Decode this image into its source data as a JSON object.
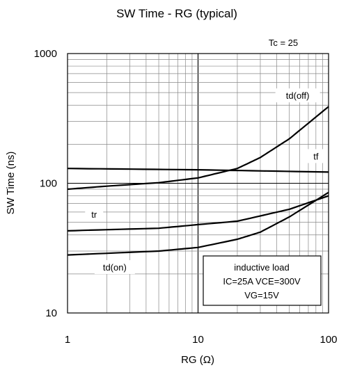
{
  "chart_data": {
    "type": "line",
    "title": "SW Time - RG (typical)",
    "xlabel": "RG  (Ω)",
    "ylabel": "SW Time  (ns)",
    "x_scale": "log",
    "y_scale": "log",
    "xlim": [
      1,
      100
    ],
    "ylim": [
      10,
      1000
    ],
    "x_ticks": [
      "1",
      "10",
      "100"
    ],
    "y_ticks": [
      "10",
      "100",
      "1000"
    ],
    "grid": true,
    "condition_label": "Tc = 25",
    "note_lines": [
      "inductive load",
      "IC=25A VCE=300V",
      "VG=15V"
    ],
    "series": [
      {
        "name": "td(off)",
        "x": [
          1,
          2,
          5,
          10,
          20,
          30,
          50,
          100
        ],
        "y": [
          90,
          95,
          101,
          110,
          130,
          158,
          220,
          390
        ]
      },
      {
        "name": "tf",
        "x": [
          1,
          10,
          100
        ],
        "y": [
          130,
          127,
          122
        ]
      },
      {
        "name": "tr",
        "x": [
          1,
          5,
          10,
          20,
          50,
          100
        ],
        "y": [
          43,
          45,
          48,
          51,
          63,
          80
        ]
      },
      {
        "name": "td(on)",
        "x": [
          1,
          5,
          10,
          20,
          30,
          50,
          100
        ],
        "y": [
          28,
          30,
          32,
          37,
          42,
          55,
          85
        ]
      }
    ]
  }
}
